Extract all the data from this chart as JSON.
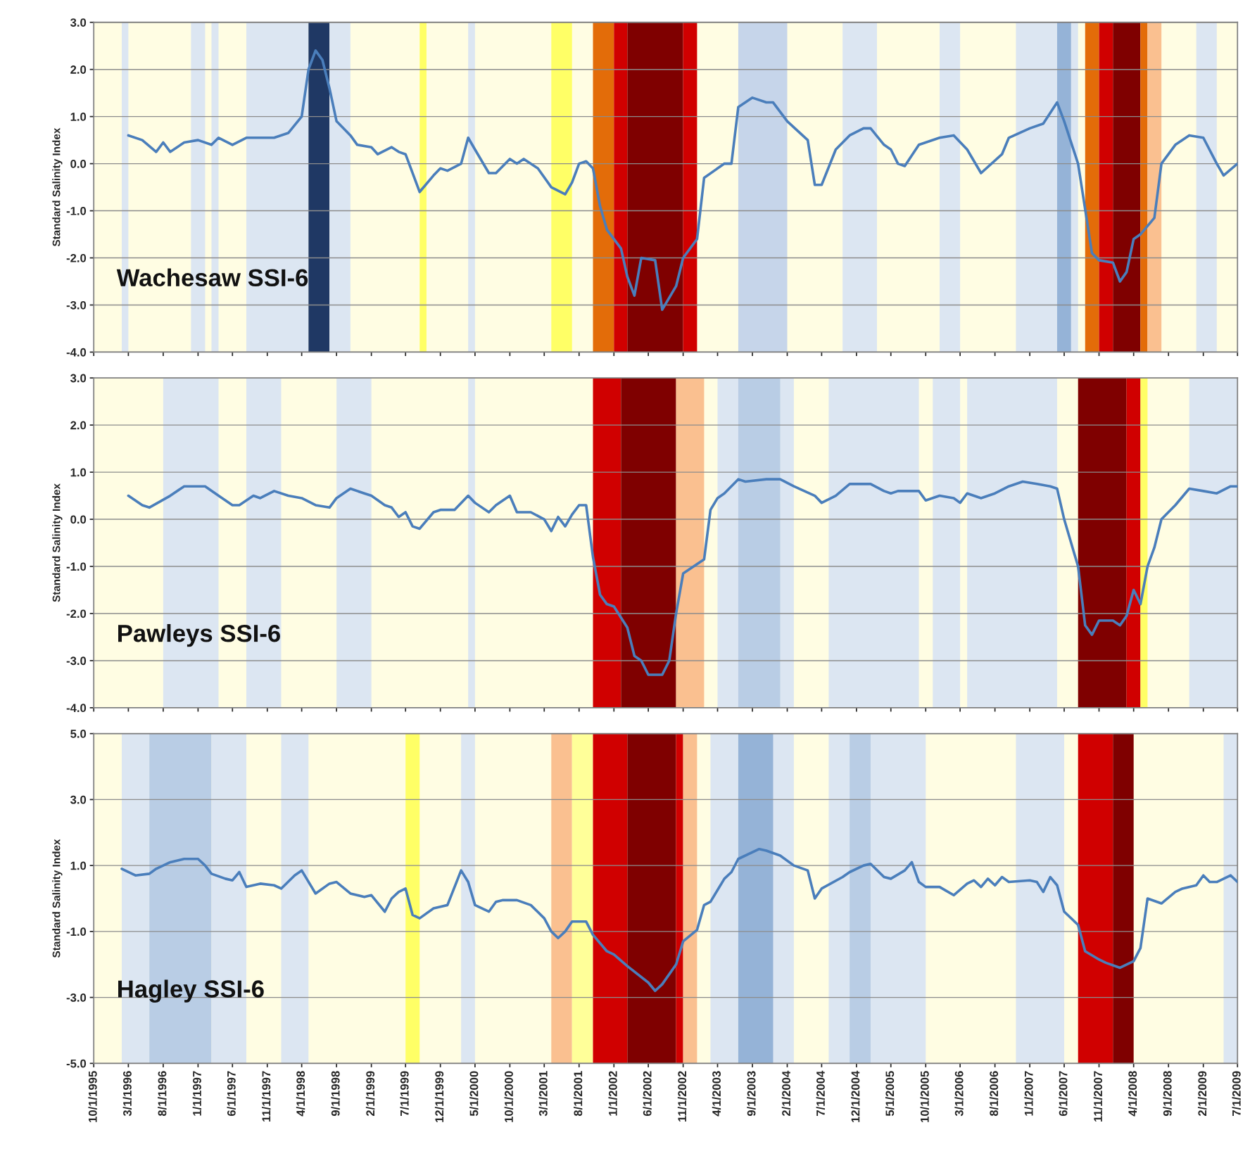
{
  "chart_data": [
    {
      "type": "line",
      "ylabel": "Standard Salinity Index",
      "annotations": [
        "Wachesaw SSI-6"
      ],
      "xlim": [
        "1995-10-01",
        "2009-07-01"
      ],
      "ylim": [
        -4,
        3
      ],
      "yticks": [
        {
          "value": -4,
          "label": "-4.0"
        },
        {
          "value": -3,
          "label": "-3.0"
        },
        {
          "value": -2,
          "label": "-2.0"
        },
        {
          "value": -1,
          "label": "-1.0"
        },
        {
          "value": 0,
          "label": "0.0"
        },
        {
          "value": 1,
          "label": "1.0"
        },
        {
          "value": 2,
          "label": "2.0"
        },
        {
          "value": 3,
          "label": "3.0"
        }
      ],
      "xticks": [
        {
          "value": "1995-10",
          "label": null
        },
        {
          "value": "1996-03",
          "label": null
        },
        {
          "value": "1996-08",
          "label": null
        },
        {
          "value": "1997-01",
          "label": null
        },
        {
          "value": "1997-06",
          "label": null
        },
        {
          "value": "1997-11",
          "label": null
        },
        {
          "value": "1998-04",
          "label": null
        },
        {
          "value": "1998-09",
          "label": null
        },
        {
          "value": "1999-02",
          "label": null
        },
        {
          "value": "1999-07",
          "label": null
        },
        {
          "value": "1999-12",
          "label": null
        },
        {
          "value": "2000-05",
          "label": null
        },
        {
          "value": "2000-10",
          "label": null
        },
        {
          "value": "2001-03",
          "label": null
        },
        {
          "value": "2001-08",
          "label": null
        },
        {
          "value": "2002-01",
          "label": null
        },
        {
          "value": "2002-06",
          "label": null
        },
        {
          "value": "2002-11",
          "label": null
        },
        {
          "value": "2003-04",
          "label": null
        },
        {
          "value": "2003-09",
          "label": null
        },
        {
          "value": "2004-02",
          "label": null
        },
        {
          "value": "2004-07",
          "label": null
        },
        {
          "value": "2004-12",
          "label": null
        },
        {
          "value": "2005-05",
          "label": null
        },
        {
          "value": "2005-10",
          "label": null
        },
        {
          "value": "2006-03",
          "label": null
        },
        {
          "value": "2006-08",
          "label": null
        },
        {
          "value": "2007-01",
          "label": null
        },
        {
          "value": "2007-06",
          "label": null
        },
        {
          "value": "2007-11",
          "label": null
        },
        {
          "value": "2008-04",
          "label": null
        },
        {
          "value": "2008-09",
          "label": null
        },
        {
          "value": "2009-02",
          "label": null
        },
        {
          "value": "2009-07",
          "label": null
        }
      ],
      "tick_labels": "y",
      "grid": "y",
      "bands": [
        {
          "axis": "x",
          "from": "1995-10",
          "to": "2009-07",
          "color": "#fffde3"
        },
        {
          "axis": "x",
          "from": "1996-02",
          "to": "1996-03",
          "color": "#dce6f2"
        },
        {
          "axis": "x",
          "from": "1996-12",
          "to": "1997-02",
          "color": "#dce6f2"
        },
        {
          "axis": "x",
          "from": "1997-03",
          "to": "1997-04",
          "color": "#dce6f2"
        },
        {
          "axis": "x",
          "from": "1997-08",
          "to": "1998-05",
          "color": "#dce6f2"
        },
        {
          "axis": "x",
          "from": "1998-05",
          "to": "1998-08",
          "color": "#1f3864"
        },
        {
          "axis": "x",
          "from": "1998-08",
          "to": "1998-11",
          "color": "#dce6f2"
        },
        {
          "axis": "x",
          "from": "1999-09",
          "to": "1999-10",
          "color": "#ffff66"
        },
        {
          "axis": "x",
          "from": "2000-04",
          "to": "2000-05",
          "color": "#dce6f2"
        },
        {
          "axis": "x",
          "from": "2001-04",
          "to": "2001-07",
          "color": "#ffff66"
        },
        {
          "axis": "x",
          "from": "2001-10",
          "to": "2002-01",
          "color": "#e36c09"
        },
        {
          "axis": "x",
          "from": "2002-01",
          "to": "2002-03",
          "color": "#d00000"
        },
        {
          "axis": "x",
          "from": "2002-03",
          "to": "2002-11",
          "color": "#7f0000"
        },
        {
          "axis": "x",
          "from": "2002-11",
          "to": "2003-01",
          "color": "#d00000"
        },
        {
          "axis": "x",
          "from": "2003-07",
          "to": "2004-02",
          "color": "#c6d5ea"
        },
        {
          "axis": "x",
          "from": "2004-10",
          "to": "2005-03",
          "color": "#dce6f2"
        },
        {
          "axis": "x",
          "from": "2005-12",
          "to": "2006-03",
          "color": "#dce6f2"
        },
        {
          "axis": "x",
          "from": "2006-11",
          "to": "2007-08",
          "color": "#dce6f2"
        },
        {
          "axis": "x",
          "from": "2007-05",
          "to": "2007-07",
          "color": "#95b3d7"
        },
        {
          "axis": "x",
          "from": "2007-09",
          "to": "2007-11",
          "color": "#e36c09"
        },
        {
          "axis": "x",
          "from": "2007-11",
          "to": "2008-01",
          "color": "#d00000"
        },
        {
          "axis": "x",
          "from": "2008-01",
          "to": "2008-05",
          "color": "#7f0000"
        },
        {
          "axis": "x",
          "from": "2008-05",
          "to": "2008-06",
          "color": "#e36c09"
        },
        {
          "axis": "x",
          "from": "2008-06",
          "to": "2008-08",
          "color": "#fac090"
        },
        {
          "axis": "x",
          "from": "2009-01",
          "to": "2009-04",
          "color": "#dce6f2"
        }
      ],
      "series": [
        {
          "color": "#4a7ebb",
          "x": [
            "1996-03",
            "1996-05",
            "1996-07",
            "1996-08",
            "1996-09",
            "1996-11",
            "1997-01",
            "1997-03",
            "1997-04",
            "1997-06",
            "1997-08",
            "1997-12",
            "1998-02",
            "1998-04",
            "1998-05",
            "1998-06",
            "1998-07",
            "1998-08",
            "1998-09",
            "1998-11",
            "1998-12",
            "1999-02",
            "1999-03",
            "1999-05",
            "1999-06",
            "1999-07",
            "1999-09",
            "1999-11",
            "1999-12",
            "2000-01",
            "2000-03",
            "2000-04",
            "2000-05",
            "2000-07",
            "2000-08",
            "2000-10",
            "2000-11",
            "2000-12",
            "2001-02",
            "2001-04",
            "2001-06",
            "2001-07",
            "2001-08",
            "2001-09",
            "2001-10",
            "2001-11",
            "2001-12",
            "2002-02",
            "2002-03",
            "2002-04",
            "2002-05",
            "2002-07",
            "2002-08",
            "2002-10",
            "2002-11",
            "2003-01",
            "2003-02",
            "2003-04",
            "2003-05",
            "2003-06",
            "2003-07",
            "2003-09",
            "2003-11",
            "2003-12",
            "2004-02",
            "2004-05",
            "2004-06",
            "2004-07",
            "2004-09",
            "2004-11",
            "2005-01",
            "2005-02",
            "2005-04",
            "2005-05",
            "2005-06",
            "2005-07",
            "2005-09",
            "2005-12",
            "2006-02",
            "2006-04",
            "2006-06",
            "2006-09",
            "2006-10",
            "2007-01",
            "2007-03",
            "2007-05",
            "2007-06",
            "2007-08",
            "2007-10",
            "2007-11",
            "2008-01",
            "2008-02",
            "2008-03",
            "2008-04",
            "2008-05",
            "2008-07",
            "2008-08",
            "2008-10",
            "2008-12",
            "2009-02",
            "2009-04",
            "2009-05",
            "2009-07"
          ],
          "values": [
            0.6,
            0.5,
            0.25,
            0.45,
            0.25,
            0.45,
            0.5,
            0.4,
            0.55,
            0.4,
            0.55,
            0.55,
            0.65,
            1.0,
            2.0,
            2.4,
            2.2,
            1.6,
            0.9,
            0.6,
            0.4,
            0.35,
            0.2,
            0.35,
            0.25,
            0.2,
            -0.6,
            -0.25,
            -0.1,
            -0.15,
            0.0,
            0.55,
            0.3,
            -0.2,
            -0.2,
            0.1,
            0.0,
            0.1,
            -0.1,
            -0.5,
            -0.65,
            -0.4,
            0.0,
            0.05,
            -0.1,
            -0.9,
            -1.4,
            -1.8,
            -2.4,
            -2.8,
            -2.0,
            -2.05,
            -3.1,
            -2.6,
            -2.0,
            -1.6,
            -0.3,
            -0.1,
            0.0,
            0.0,
            1.2,
            1.4,
            1.3,
            1.3,
            0.9,
            0.5,
            -0.45,
            -0.45,
            0.3,
            0.6,
            0.75,
            0.75,
            0.4,
            0.3,
            0.0,
            -0.05,
            0.4,
            0.55,
            0.6,
            0.3,
            -0.2,
            0.2,
            0.55,
            0.75,
            0.85,
            1.3,
            0.9,
            0.0,
            -1.9,
            -2.05,
            -2.1,
            -2.5,
            -2.3,
            -1.6,
            -1.5,
            -1.15,
            0.0,
            0.4,
            0.6,
            0.55,
            0.0,
            -0.25,
            0.0
          ]
        }
      ]
    },
    {
      "type": "line",
      "ylabel": "Standard Salinity Index",
      "annotations": [
        "Pawleys SSI-6"
      ],
      "xlim": [
        "1995-10-01",
        "2009-07-01"
      ],
      "ylim": [
        -4,
        3
      ],
      "yticks": [
        {
          "value": -4,
          "label": "-4.0"
        },
        {
          "value": -3,
          "label": "-3.0"
        },
        {
          "value": -2,
          "label": "-2.0"
        },
        {
          "value": -1,
          "label": "-1.0"
        },
        {
          "value": 0,
          "label": "0.0"
        },
        {
          "value": 1,
          "label": "1.0"
        },
        {
          "value": 2,
          "label": "2.0"
        },
        {
          "value": 3,
          "label": "3.0"
        }
      ],
      "xticks": [
        {
          "value": "1995-10",
          "label": null
        },
        {
          "value": "1996-03",
          "label": null
        },
        {
          "value": "1996-08",
          "label": null
        },
        {
          "value": "1997-01",
          "label": null
        },
        {
          "value": "1997-06",
          "label": null
        },
        {
          "value": "1997-11",
          "label": null
        },
        {
          "value": "1998-04",
          "label": null
        },
        {
          "value": "1998-09",
          "label": null
        },
        {
          "value": "1999-02",
          "label": null
        },
        {
          "value": "1999-07",
          "label": null
        },
        {
          "value": "1999-12",
          "label": null
        },
        {
          "value": "2000-05",
          "label": null
        },
        {
          "value": "2000-10",
          "label": null
        },
        {
          "value": "2001-03",
          "label": null
        },
        {
          "value": "2001-08",
          "label": null
        },
        {
          "value": "2002-01",
          "label": null
        },
        {
          "value": "2002-06",
          "label": null
        },
        {
          "value": "2002-11",
          "label": null
        },
        {
          "value": "2003-04",
          "label": null
        },
        {
          "value": "2003-09",
          "label": null
        },
        {
          "value": "2004-02",
          "label": null
        },
        {
          "value": "2004-07",
          "label": null
        },
        {
          "value": "2004-12",
          "label": null
        },
        {
          "value": "2005-05",
          "label": null
        },
        {
          "value": "2005-10",
          "label": null
        },
        {
          "value": "2006-03",
          "label": null
        },
        {
          "value": "2006-08",
          "label": null
        },
        {
          "value": "2007-01",
          "label": null
        },
        {
          "value": "2007-06",
          "label": null
        },
        {
          "value": "2007-11",
          "label": null
        },
        {
          "value": "2008-04",
          "label": null
        },
        {
          "value": "2008-09",
          "label": null
        },
        {
          "value": "2009-02",
          "label": null
        },
        {
          "value": "2009-07",
          "label": null
        }
      ],
      "tick_labels": "y",
      "grid": "y",
      "bands": [
        {
          "axis": "x",
          "from": "1995-10",
          "to": "2009-07",
          "color": "#fffde3"
        },
        {
          "axis": "x",
          "from": "1996-08",
          "to": "1997-04",
          "color": "#dce6f2"
        },
        {
          "axis": "x",
          "from": "1997-08",
          "to": "1998-01",
          "color": "#dce6f2"
        },
        {
          "axis": "x",
          "from": "1998-09",
          "to": "1999-02",
          "color": "#dce6f2"
        },
        {
          "axis": "x",
          "from": "2000-04",
          "to": "2000-05",
          "color": "#dce6f2"
        },
        {
          "axis": "x",
          "from": "2001-10",
          "to": "2002-02",
          "color": "#d00000"
        },
        {
          "axis": "x",
          "from": "2002-02",
          "to": "2002-10",
          "color": "#7f0000"
        },
        {
          "axis": "x",
          "from": "2002-10",
          "to": "2003-02",
          "color": "#fac090"
        },
        {
          "axis": "x",
          "from": "2003-04",
          "to": "2004-03",
          "color": "#dce6f2"
        },
        {
          "axis": "x",
          "from": "2003-07",
          "to": "2004-01",
          "color": "#b9cde5"
        },
        {
          "axis": "x",
          "from": "2004-08",
          "to": "2005-09",
          "color": "#dce6f2"
        },
        {
          "axis": "x",
          "from": "2005-11",
          "to": "2006-03",
          "color": "#dce6f2"
        },
        {
          "axis": "x",
          "from": "2006-04",
          "to": "2007-05",
          "color": "#dce6f2"
        },
        {
          "axis": "x",
          "from": "2007-08",
          "to": "2008-03",
          "color": "#7f0000"
        },
        {
          "axis": "x",
          "from": "2008-03",
          "to": "2008-05",
          "color": "#d00000"
        },
        {
          "axis": "x",
          "from": "2008-05",
          "to": "2008-06",
          "color": "#ffff66"
        },
        {
          "axis": "x",
          "from": "2008-12",
          "to": "2009-07",
          "color": "#dce6f2"
        }
      ],
      "series": [
        {
          "color": "#4a7ebb",
          "x": [
            "1996-03",
            "1996-05",
            "1996-06",
            "1996-09",
            "1996-11",
            "1997-02",
            "1997-04",
            "1997-06",
            "1997-07",
            "1997-09",
            "1997-10",
            "1997-12",
            "1998-02",
            "1998-04",
            "1998-06",
            "1998-08",
            "1998-09",
            "1998-11",
            "1999-01",
            "1999-02",
            "1999-04",
            "1999-05",
            "1999-06",
            "1999-07",
            "1999-08",
            "1999-09",
            "1999-11",
            "1999-12",
            "2000-02",
            "2000-04",
            "2000-05",
            "2000-07",
            "2000-08",
            "2000-10",
            "2000-11",
            "2001-01",
            "2001-03",
            "2001-04",
            "2001-05",
            "2001-06",
            "2001-07",
            "2001-08",
            "2001-09",
            "2001-10",
            "2001-11",
            "2001-12",
            "2002-01",
            "2002-03",
            "2002-04",
            "2002-05",
            "2002-06",
            "2002-08",
            "2002-09",
            "2002-10",
            "2002-11",
            "2003-01",
            "2003-02",
            "2003-03",
            "2003-04",
            "2003-05",
            "2003-07",
            "2003-08",
            "2003-11",
            "2004-01",
            "2004-03",
            "2004-06",
            "2004-07",
            "2004-09",
            "2004-11",
            "2005-02",
            "2005-04",
            "2005-05",
            "2005-06",
            "2005-09",
            "2005-10",
            "2005-12",
            "2006-02",
            "2006-03",
            "2006-04",
            "2006-06",
            "2006-08",
            "2006-10",
            "2006-12",
            "2007-02",
            "2007-04",
            "2007-05",
            "2007-06",
            "2007-08",
            "2007-09",
            "2007-10",
            "2007-11",
            "2008-01",
            "2008-02",
            "2008-03",
            "2008-04",
            "2008-05",
            "2008-06",
            "2008-07",
            "2008-08",
            "2008-10",
            "2008-12",
            "2009-02",
            "2009-04",
            "2009-06",
            "2009-07"
          ],
          "values": [
            0.5,
            0.3,
            0.25,
            0.5,
            0.7,
            0.7,
            0.5,
            0.3,
            0.3,
            0.5,
            0.45,
            0.6,
            0.5,
            0.45,
            0.3,
            0.25,
            0.45,
            0.65,
            0.55,
            0.5,
            0.3,
            0.25,
            0.05,
            0.15,
            -0.15,
            -0.2,
            0.15,
            0.2,
            0.2,
            0.5,
            0.35,
            0.15,
            0.3,
            0.5,
            0.15,
            0.15,
            0.0,
            -0.25,
            0.05,
            -0.15,
            0.1,
            0.3,
            0.3,
            -0.8,
            -1.6,
            -1.8,
            -1.85,
            -2.3,
            -2.9,
            -3.0,
            -3.3,
            -3.3,
            -3.0,
            -2.0,
            -1.15,
            -0.95,
            -0.85,
            0.2,
            0.45,
            0.55,
            0.85,
            0.8,
            0.85,
            0.85,
            0.7,
            0.5,
            0.35,
            0.5,
            0.75,
            0.75,
            0.6,
            0.55,
            0.6,
            0.6,
            0.4,
            0.5,
            0.45,
            0.35,
            0.55,
            0.45,
            0.55,
            0.7,
            0.8,
            0.75,
            0.7,
            0.65,
            0.0,
            -1.0,
            -2.25,
            -2.45,
            -2.15,
            -2.15,
            -2.25,
            -2.05,
            -1.5,
            -1.8,
            -1.0,
            -0.6,
            0.0,
            0.3,
            0.65,
            0.6,
            0.55,
            0.7,
            0.7
          ]
        }
      ]
    },
    {
      "type": "line",
      "ylabel": "Standard Salinity Index",
      "annotations": [
        "Hagley SSI-6"
      ],
      "xlim": [
        "1995-10-01",
        "2009-07-01"
      ],
      "ylim": [
        -5,
        5
      ],
      "yticks": [
        {
          "value": -5,
          "label": "-5.0"
        },
        {
          "value": -3,
          "label": "-3.0"
        },
        {
          "value": -1,
          "label": "-1.0"
        },
        {
          "value": 1,
          "label": "1.0"
        },
        {
          "value": 3,
          "label": "3.0"
        },
        {
          "value": 5,
          "label": "5.0"
        }
      ],
      "xticks": [
        {
          "value": "1995-10",
          "label": "10/1/1995"
        },
        {
          "value": "1996-03",
          "label": "3/1/1996"
        },
        {
          "value": "1996-08",
          "label": "8/1/1996"
        },
        {
          "value": "1997-01",
          "label": "1/1/1997"
        },
        {
          "value": "1997-06",
          "label": "6/1/1997"
        },
        {
          "value": "1997-11",
          "label": "11/1/1997"
        },
        {
          "value": "1998-04",
          "label": "4/1/1998"
        },
        {
          "value": "1998-09",
          "label": "9/1/1998"
        },
        {
          "value": "1999-02",
          "label": "2/1/1999"
        },
        {
          "value": "1999-07",
          "label": "7/1/1999"
        },
        {
          "value": "1999-12",
          "label": "12/1/1999"
        },
        {
          "value": "2000-05",
          "label": "5/1/2000"
        },
        {
          "value": "2000-10",
          "label": "10/1/2000"
        },
        {
          "value": "2001-03",
          "label": "3/1/2001"
        },
        {
          "value": "2001-08",
          "label": "8/1/2001"
        },
        {
          "value": "2002-01",
          "label": "1/1/2002"
        },
        {
          "value": "2002-06",
          "label": "6/1/2002"
        },
        {
          "value": "2002-11",
          "label": "11/1/2002"
        },
        {
          "value": "2003-04",
          "label": "4/1/2003"
        },
        {
          "value": "2003-09",
          "label": "9/1/2003"
        },
        {
          "value": "2004-02",
          "label": "2/1/2004"
        },
        {
          "value": "2004-07",
          "label": "7/1/2004"
        },
        {
          "value": "2004-12",
          "label": "12/1/2004"
        },
        {
          "value": "2005-05",
          "label": "5/1/2005"
        },
        {
          "value": "2005-10",
          "label": "10/1/2005"
        },
        {
          "value": "2006-03",
          "label": "3/1/2006"
        },
        {
          "value": "2006-08",
          "label": "8/1/2006"
        },
        {
          "value": "2007-01",
          "label": "1/1/2007"
        },
        {
          "value": "2007-06",
          "label": "6/1/2007"
        },
        {
          "value": "2007-11",
          "label": "11/1/2007"
        },
        {
          "value": "2008-04",
          "label": "4/1/2008"
        },
        {
          "value": "2008-09",
          "label": "9/1/2008"
        },
        {
          "value": "2009-02",
          "label": "2/1/2009"
        },
        {
          "value": "2009-07",
          "label": "7/1/2009"
        }
      ],
      "grid": "y",
      "bands": [
        {
          "axis": "x",
          "from": "1995-10",
          "to": "2009-07",
          "color": "#fffde3"
        },
        {
          "axis": "x",
          "from": "1996-02",
          "to": "1996-06",
          "color": "#dce6f2"
        },
        {
          "axis": "x",
          "from": "1996-06",
          "to": "1997-03",
          "color": "#b9cde5"
        },
        {
          "axis": "x",
          "from": "1997-03",
          "to": "1997-08",
          "color": "#dce6f2"
        },
        {
          "axis": "x",
          "from": "1998-01",
          "to": "1998-05",
          "color": "#dce6f2"
        },
        {
          "axis": "x",
          "from": "1999-07",
          "to": "1999-09",
          "color": "#ffff66"
        },
        {
          "axis": "x",
          "from": "2000-03",
          "to": "2000-05",
          "color": "#dce6f2"
        },
        {
          "axis": "x",
          "from": "2001-04",
          "to": "2001-07",
          "color": "#fac090"
        },
        {
          "axis": "x",
          "from": "2001-07",
          "to": "2001-10",
          "color": "#ffff99"
        },
        {
          "axis": "x",
          "from": "2001-10",
          "to": "2002-03",
          "color": "#d00000"
        },
        {
          "axis": "x",
          "from": "2002-03",
          "to": "2002-10",
          "color": "#7f0000"
        },
        {
          "axis": "x",
          "from": "2002-10",
          "to": "2002-11",
          "color": "#d00000"
        },
        {
          "axis": "x",
          "from": "2002-11",
          "to": "2003-01",
          "color": "#fac090"
        },
        {
          "axis": "x",
          "from": "2003-03",
          "to": "2004-03",
          "color": "#dce6f2"
        },
        {
          "axis": "x",
          "from": "2003-07",
          "to": "2003-12",
          "color": "#95b3d7"
        },
        {
          "axis": "x",
          "from": "2004-08",
          "to": "2005-10",
          "color": "#dce6f2"
        },
        {
          "axis": "x",
          "from": "2004-11",
          "to": "2005-02",
          "color": "#b9cde5"
        },
        {
          "axis": "x",
          "from": "2006-11",
          "to": "2007-06",
          "color": "#dce6f2"
        },
        {
          "axis": "x",
          "from": "2007-08",
          "to": "2008-01",
          "color": "#d00000"
        },
        {
          "axis": "x",
          "from": "2008-01",
          "to": "2008-04",
          "color": "#7f0000"
        },
        {
          "axis": "x",
          "from": "2009-05",
          "to": "2009-07",
          "color": "#dce6f2"
        }
      ],
      "series": [
        {
          "color": "#4a7ebb",
          "x": [
            "1996-02",
            "1996-04",
            "1996-06",
            "1996-07",
            "1996-09",
            "1996-11",
            "1997-01",
            "1997-02",
            "1997-03",
            "1997-05",
            "1997-06",
            "1997-07",
            "1997-08",
            "1997-10",
            "1997-12",
            "1998-01",
            "1998-03",
            "1998-04",
            "1998-06",
            "1998-08",
            "1998-09",
            "1998-11",
            "1999-01",
            "1999-02",
            "1999-04",
            "1999-05",
            "1999-06",
            "1999-07",
            "1999-08",
            "1999-09",
            "1999-11",
            "1999-12",
            "2000-01",
            "2000-03",
            "2000-04",
            "2000-05",
            "2000-07",
            "2000-08",
            "2000-09",
            "2000-11",
            "2001-01",
            "2001-03",
            "2001-04",
            "2001-05",
            "2001-06",
            "2001-07",
            "2001-09",
            "2001-10",
            "2001-12",
            "2002-01",
            "2002-03",
            "2002-06",
            "2002-07",
            "2002-08",
            "2002-10",
            "2002-11",
            "2003-01",
            "2003-02",
            "2003-03",
            "2003-05",
            "2003-06",
            "2003-07",
            "2003-10",
            "2003-11",
            "2004-01",
            "2004-03",
            "2004-05",
            "2004-06",
            "2004-07",
            "2004-10",
            "2004-11",
            "2005-01",
            "2005-02",
            "2005-04",
            "2005-05",
            "2005-07",
            "2005-08",
            "2005-09",
            "2005-10",
            "2005-12",
            "2006-02",
            "2006-04",
            "2006-05",
            "2006-06",
            "2006-07",
            "2006-08",
            "2006-09",
            "2006-10",
            "2007-01",
            "2007-02",
            "2007-03",
            "2007-04",
            "2007-05",
            "2007-06",
            "2007-08",
            "2007-09",
            "2007-11",
            "2007-12",
            "2008-02",
            "2008-04",
            "2008-05",
            "2008-06",
            "2008-08",
            "2008-10",
            "2008-11",
            "2009-01",
            "2009-02",
            "2009-03",
            "2009-04",
            "2009-06",
            "2009-07"
          ],
          "values": [
            0.9,
            0.7,
            0.75,
            0.9,
            1.1,
            1.2,
            1.2,
            1.0,
            0.75,
            0.6,
            0.55,
            0.8,
            0.35,
            0.45,
            0.4,
            0.3,
            0.7,
            0.85,
            0.15,
            0.45,
            0.5,
            0.15,
            0.05,
            0.1,
            -0.4,
            0.0,
            0.2,
            0.3,
            -0.5,
            -0.6,
            -0.3,
            -0.25,
            -0.2,
            0.85,
            0.5,
            -0.2,
            -0.4,
            -0.1,
            -0.05,
            -0.05,
            -0.2,
            -0.6,
            -1.0,
            -1.2,
            -1.0,
            -0.7,
            -0.7,
            -1.1,
            -1.6,
            -1.7,
            -2.05,
            -2.55,
            -2.8,
            -2.6,
            -2.0,
            -1.3,
            -0.95,
            -0.2,
            -0.1,
            0.6,
            0.8,
            1.2,
            1.5,
            1.45,
            1.3,
            1.0,
            0.85,
            0.0,
            0.3,
            0.65,
            0.8,
            1.0,
            1.05,
            0.65,
            0.6,
            0.85,
            1.1,
            0.5,
            0.35,
            0.35,
            0.1,
            0.45,
            0.55,
            0.35,
            0.6,
            0.4,
            0.65,
            0.5,
            0.55,
            0.5,
            0.2,
            0.65,
            0.4,
            -0.4,
            -0.8,
            -1.6,
            -1.85,
            -1.95,
            -2.1,
            -1.9,
            -1.5,
            0.0,
            -0.15,
            0.2,
            0.3,
            0.4,
            0.7,
            0.5,
            0.5,
            0.7,
            0.5
          ]
        }
      ]
    }
  ]
}
